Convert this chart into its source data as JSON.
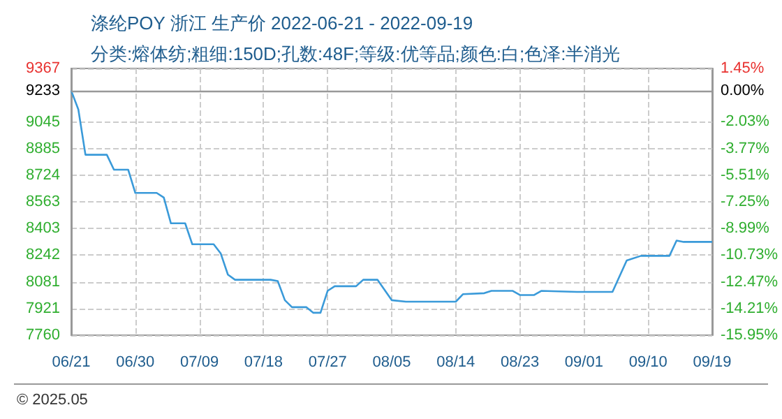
{
  "chart_data": {
    "type": "line",
    "title": "涤纶POY 浙江 生产价 2022-06-21 - 2022-09-19",
    "subtitle": "分类:熔体纺;粗细:150D;孔数:48F;等级:优等品;颜色:白;色泽:半消光",
    "annotations": [
      "© 2025.05"
    ],
    "x": [
      "2022-06-21",
      "2022-06-22",
      "2022-06-23",
      "2022-06-26",
      "2022-06-27",
      "2022-06-29",
      "2022-06-30",
      "2022-07-03",
      "2022-07-04",
      "2022-07-05",
      "2022-07-07",
      "2022-07-08",
      "2022-07-11",
      "2022-07-12",
      "2022-07-13",
      "2022-07-14",
      "2022-07-19",
      "2022-07-20",
      "2022-07-21",
      "2022-07-22",
      "2022-07-24",
      "2022-07-25",
      "2022-07-26",
      "2022-07-27",
      "2022-07-28",
      "2022-07-31",
      "2022-08-01",
      "2022-08-03",
      "2022-08-05",
      "2022-08-07",
      "2022-08-14",
      "2022-08-15",
      "2022-08-18",
      "2022-08-19",
      "2022-08-22",
      "2022-08-23",
      "2022-08-25",
      "2022-08-26",
      "2022-08-31",
      "2022-09-05",
      "2022-09-07",
      "2022-09-09",
      "2022-09-13",
      "2022-09-14",
      "2022-09-15",
      "2022-09-19"
    ],
    "series": [
      {
        "color": "#3a9ad9",
        "values": [
          9233,
          9120,
          8847,
          8847,
          8757,
          8757,
          8617,
          8617,
          8589,
          8434,
          8434,
          8308,
          8308,
          8252,
          8125,
          8094,
          8094,
          8086,
          7971,
          7929,
          7929,
          7895,
          7895,
          8027,
          8055,
          8055,
          8094,
          8094,
          7971,
          7962,
          7962,
          8007,
          8013,
          8027,
          8027,
          8002,
          8002,
          8027,
          8021,
          8021,
          8210,
          8238,
          8238,
          8330,
          8322,
          8322
        ]
      }
    ],
    "xlim": [
      "2022-06-21",
      "2022-09-19"
    ],
    "xticks": [
      {
        "value": "2022-06-21",
        "label": "06/21"
      },
      {
        "value": "2022-06-30",
        "label": "06/30"
      },
      {
        "value": "2022-07-09",
        "label": "07/09"
      },
      {
        "value": "2022-07-18",
        "label": "07/18"
      },
      {
        "value": "2022-07-27",
        "label": "07/27"
      },
      {
        "value": "2022-08-05",
        "label": "08/05"
      },
      {
        "value": "2022-08-14",
        "label": "08/14"
      },
      {
        "value": "2022-08-23",
        "label": "08/23"
      },
      {
        "value": "2022-09-01",
        "label": "09/01"
      },
      {
        "value": "2022-09-10",
        "label": "09/10"
      },
      {
        "value": "2022-09-19",
        "label": "09/19"
      }
    ],
    "ylim": [
      7760,
      9367
    ],
    "yticks": [
      7760,
      7921,
      8081,
      8242,
      8403,
      8563,
      8724,
      8885,
      9045,
      9233,
      9367
    ],
    "y2lim": [
      -15.95,
      1.45
    ],
    "y2ticks": [
      {
        "value": -15.95,
        "label": "-15.95%"
      },
      {
        "value": -14.21,
        "label": "-14.21%"
      },
      {
        "value": -12.47,
        "label": "-12.47%"
      },
      {
        "value": -10.73,
        "label": "-10.73%"
      },
      {
        "value": -8.99,
        "label": "-8.99%"
      },
      {
        "value": -7.25,
        "label": "-7.25%"
      },
      {
        "value": -5.51,
        "label": "-5.51%"
      },
      {
        "value": -3.77,
        "label": "-3.77%"
      },
      {
        "value": -2.03,
        "label": "-2.03%"
      },
      {
        "value": 0,
        "label": "0.00%"
      },
      {
        "value": 1.45,
        "label": "1.45%"
      }
    ],
    "ref_lines": [
      {
        "axis": "y",
        "value": 9233,
        "color": "#999999"
      }
    ],
    "grid": true,
    "marker": "none",
    "line_style": "solid"
  }
}
